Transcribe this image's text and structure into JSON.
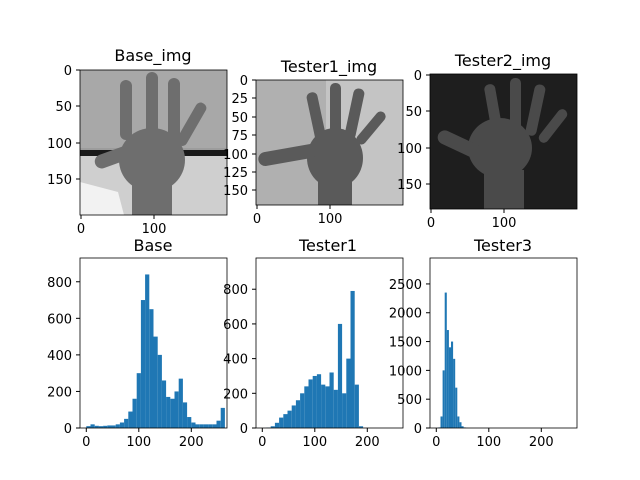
{
  "figure": {
    "image_panels": [
      {
        "title": "Base_img",
        "shading": "light-gray"
      },
      {
        "title": "Tester1_img",
        "shading": "light-gray"
      },
      {
        "title": "Tester2_img",
        "shading": "dark"
      }
    ],
    "bar_color": "#1f77b4"
  },
  "chart_data": [
    {
      "type": "image",
      "title": "Base_img",
      "x_ticks": [
        "0",
        "100"
      ],
      "y_ticks": [
        "0",
        "50",
        "100",
        "150"
      ],
      "xlim": [
        0,
        200
      ],
      "ylim": [
        200,
        0
      ]
    },
    {
      "type": "image",
      "title": "Tester1_img",
      "x_ticks": [
        "0",
        "100"
      ],
      "y_ticks": [
        "0",
        "25",
        "50",
        "75",
        "100",
        "125",
        "150"
      ],
      "xlim": [
        0,
        200
      ],
      "ylim": [
        170,
        0
      ]
    },
    {
      "type": "image",
      "title": "Tester2_img",
      "x_ticks": [
        "0",
        "100"
      ],
      "y_ticks": [
        "0",
        "50",
        "100",
        "150"
      ],
      "xlim": [
        0,
        200
      ],
      "ylim": [
        185,
        0
      ]
    },
    {
      "type": "bar",
      "title": "Base",
      "xlim": [
        -12,
        268
      ],
      "ylim": [
        0,
        930
      ],
      "x_ticks": [
        0,
        100,
        200
      ],
      "y_ticks": [
        0,
        200,
        400,
        600,
        800
      ],
      "x": [
        0,
        8,
        16,
        24,
        32,
        40,
        48,
        56,
        64,
        72,
        80,
        88,
        96,
        104,
        112,
        120,
        128,
        136,
        144,
        152,
        160,
        168,
        176,
        184,
        192,
        200,
        208,
        216,
        224,
        232,
        240,
        248,
        256
      ],
      "values": [
        10,
        20,
        12,
        10,
        12,
        14,
        14,
        20,
        30,
        50,
        90,
        160,
        300,
        700,
        840,
        650,
        500,
        400,
        260,
        170,
        160,
        200,
        270,
        140,
        60,
        30,
        20,
        20,
        20,
        20,
        20,
        40,
        110
      ]
    },
    {
      "type": "bar",
      "title": "Tester1",
      "xlim": [
        -12,
        268
      ],
      "ylim": [
        0,
        980
      ],
      "x_ticks": [
        0,
        100,
        200
      ],
      "y_ticks": [
        0,
        200,
        400,
        600,
        800
      ],
      "x": [
        0,
        8,
        16,
        24,
        32,
        40,
        48,
        56,
        64,
        72,
        80,
        88,
        96,
        104,
        112,
        120,
        128,
        136,
        144,
        152,
        160,
        168,
        176,
        184,
        192,
        200,
        208,
        216,
        224,
        232,
        240,
        248,
        256
      ],
      "values": [
        0,
        2,
        10,
        30,
        60,
        80,
        100,
        130,
        160,
        200,
        240,
        280,
        300,
        310,
        250,
        240,
        320,
        220,
        600,
        200,
        400,
        790,
        250,
        10,
        0,
        0,
        0,
        0,
        0,
        0,
        0,
        0,
        0
      ]
    },
    {
      "type": "bar",
      "title": "Tester3",
      "xlim": [
        -12,
        268
      ],
      "ylim": [
        0,
        2950
      ],
      "x_ticks": [
        0,
        100,
        200
      ],
      "y_ticks": [
        0,
        500,
        1000,
        1500,
        2000,
        2500
      ],
      "x": [
        0,
        4,
        8,
        12,
        16,
        20,
        24,
        28,
        32,
        36,
        40,
        44,
        48,
        52,
        56,
        60,
        64,
        68,
        72,
        76,
        80,
        100,
        150,
        200,
        250
      ],
      "values": [
        0,
        10,
        200,
        1000,
        2350,
        1700,
        1400,
        1500,
        1200,
        700,
        200,
        100,
        30,
        10,
        2,
        0,
        0,
        0,
        0,
        0,
        0,
        0,
        0,
        0,
        0
      ]
    }
  ]
}
